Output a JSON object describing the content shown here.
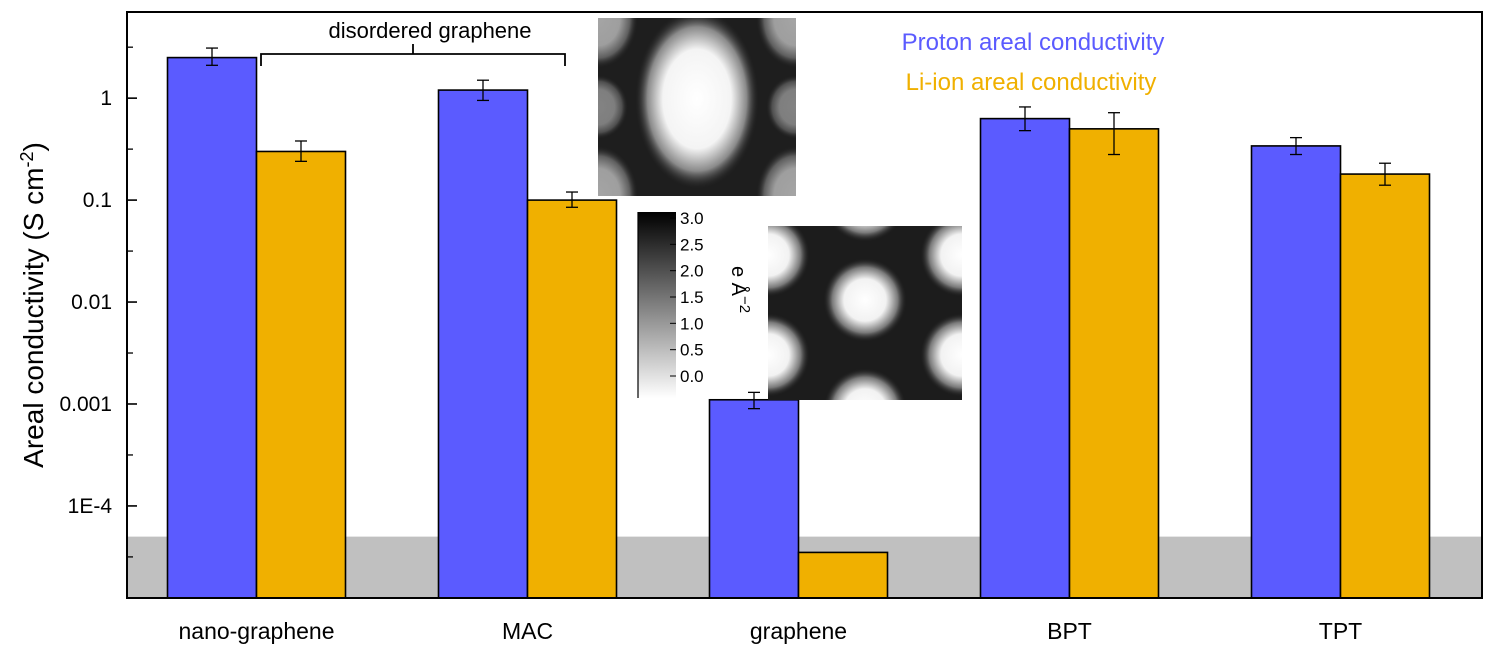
{
  "chart_data": {
    "type": "bar",
    "ylabel": "Areal conductivity (S cm",
    "ylabel_sup": "-2",
    "ylabel_close": ")",
    "yscale": "log",
    "ylim": [
      1.25e-05,
      7
    ],
    "y_ticks": [
      {
        "value": 0.0001,
        "label": "1E-4"
      },
      {
        "value": 0.001,
        "label": "0.001"
      },
      {
        "value": 0.01,
        "label": "0.01"
      },
      {
        "value": 0.1,
        "label": "0.1"
      },
      {
        "value": 1,
        "label": "1"
      }
    ],
    "categories": [
      "nano-graphene",
      "MAC",
      "graphene",
      "BPT",
      "TPT"
    ],
    "series": [
      {
        "name": "Proton areal conductivity",
        "color": "#5b5bff",
        "values": [
          2.5,
          1.2,
          0.0011,
          0.63,
          0.34
        ],
        "err_low": [
          2.1,
          0.95,
          0.0009,
          0.48,
          0.28
        ],
        "err_high": [
          3.1,
          1.5,
          0.0013,
          0.82,
          0.41
        ]
      },
      {
        "name": "Li-ion areal conductivity",
        "color": "#f0b000",
        "values": [
          0.3,
          0.1,
          3.5e-05,
          0.5,
          0.18
        ],
        "err_low": [
          0.24,
          0.085,
          null,
          0.28,
          0.14
        ],
        "err_high": [
          0.38,
          0.12,
          null,
          0.72,
          0.23
        ]
      }
    ],
    "shaded_region": {
      "below": 5e-05,
      "color": "#c0c0c0"
    },
    "annotation": "disordered graphene",
    "colorbar": {
      "title": "e Å",
      "title_sup": "−2",
      "ticks": [
        "3.0",
        "2.5",
        "2.0",
        "1.5",
        "1.0",
        "0.5",
        "0.0"
      ]
    },
    "grid": false
  }
}
